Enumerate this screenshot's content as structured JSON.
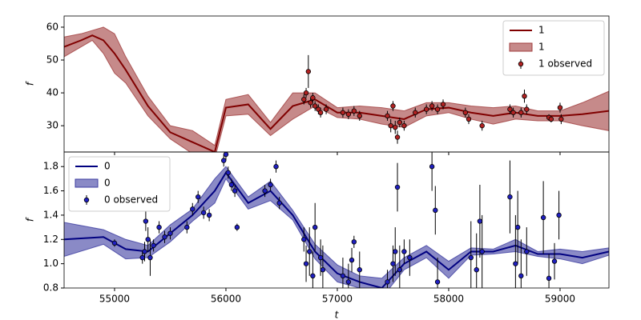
{
  "chart_data": [
    {
      "type": "line",
      "y_label": "f",
      "legend": "upper right",
      "ylim": [
        22,
        63.4
      ],
      "yticks": [
        30,
        40,
        50,
        60
      ],
      "x": [
        54547,
        54700,
        54800,
        54900,
        55000,
        55100,
        55300,
        55500,
        55700,
        55900,
        56000,
        56200,
        56400,
        56600,
        56800,
        57000,
        57200,
        57400,
        57600,
        57800,
        58000,
        58200,
        58400,
        58600,
        58800,
        59000,
        59200,
        59439
      ],
      "series": [
        {
          "name": "1",
          "type": "line",
          "color": "#800000",
          "values": [
            54,
            56,
            57.5,
            56,
            52,
            47,
            36,
            28,
            25,
            22,
            35.5,
            36.5,
            29,
            36,
            38,
            34,
            34,
            33,
            32,
            35,
            35.5,
            34,
            33,
            34,
            33,
            33,
            33.5,
            34.5
          ]
        },
        {
          "name": "1",
          "type": "band",
          "color": "#a03c3c",
          "lower": [
            51,
            54,
            56,
            52,
            46,
            43,
            33,
            26,
            21.5,
            20,
            33,
            33.5,
            27,
            32,
            36,
            32.5,
            32,
            30.5,
            29.5,
            33,
            34,
            32,
            30.5,
            32,
            31.5,
            31.5,
            30,
            28.5
          ],
          "upper": [
            57,
            58,
            59,
            60,
            58,
            51,
            39,
            30,
            28.5,
            24,
            38,
            39.5,
            31,
            40,
            40,
            35.5,
            36,
            35.5,
            34.5,
            37,
            37,
            36,
            35.5,
            36,
            34.5,
            34.5,
            37,
            40.5
          ]
        },
        {
          "name": "1 observed",
          "type": "errorbar",
          "color": "#b22222",
          "x": [
            56700,
            56720,
            56740,
            56760,
            56780,
            56800,
            56830,
            56850,
            56900,
            57050,
            57100,
            57150,
            57200,
            57450,
            57480,
            57500,
            57520,
            57540,
            57560,
            57600,
            57700,
            57800,
            57850,
            57900,
            57950,
            58150,
            58180,
            58300,
            58550,
            58580,
            58650,
            58680,
            58700,
            58900,
            58920,
            59000,
            59010
          ],
          "values": [
            38,
            40,
            46.5,
            37,
            38.5,
            36,
            35,
            34,
            35,
            34,
            33.5,
            34.5,
            33,
            33,
            30,
            36,
            29.5,
            26.5,
            31,
            30,
            34,
            35,
            36,
            35,
            36.5,
            34,
            32,
            30,
            35,
            34,
            34,
            39,
            35,
            32.5,
            32,
            35.5,
            32
          ],
          "errors": [
            1.5,
            1.5,
            5,
            1.5,
            1.5,
            1.5,
            1.5,
            1.5,
            1.5,
            1.5,
            1.5,
            1.5,
            1.5,
            1.5,
            2,
            1.5,
            2,
            2,
            1.5,
            1.5,
            1.5,
            1.5,
            1.5,
            1.5,
            1.5,
            1.5,
            1.5,
            1.5,
            1.5,
            1.5,
            1.5,
            2,
            1.5,
            1,
            1,
            1.5,
            1.5
          ]
        }
      ]
    },
    {
      "type": "line",
      "y_label": "f",
      "x_label": "t",
      "legend": "upper left",
      "xlim": [
        54547,
        59439
      ],
      "xticks": [
        55000,
        56000,
        57000,
        58000,
        59000
      ],
      "ylim": [
        0.8,
        1.92
      ],
      "yticks": [
        0.8,
        {
          "value": 1,
          "label": "1.0"
        },
        1.2,
        1.4,
        1.6,
        1.8
      ],
      "x": [
        54547,
        54900,
        55100,
        55300,
        55500,
        55700,
        55900,
        56000,
        56200,
        56400,
        56600,
        56800,
        57000,
        57200,
        57400,
        57600,
        57800,
        58000,
        58200,
        58400,
        58600,
        58800,
        59000,
        59200,
        59439
      ],
      "series": [
        {
          "name": "0",
          "type": "line",
          "color": "#000080",
          "values": [
            1.2,
            1.22,
            1.12,
            1.1,
            1.25,
            1.4,
            1.6,
            1.75,
            1.5,
            1.6,
            1.4,
            1.1,
            0.92,
            0.85,
            0.8,
            1.0,
            1.1,
            0.95,
            1.1,
            1.1,
            1.15,
            1.08,
            1.08,
            1.05,
            1.1
          ]
        },
        {
          "name": "0",
          "type": "band",
          "color": "#3c3ca0",
          "lower": [
            1.06,
            1.16,
            1.04,
            1.05,
            1.18,
            1.35,
            1.5,
            1.7,
            1.45,
            1.52,
            1.36,
            1.04,
            0.85,
            0.8,
            0.72,
            0.95,
            1.05,
            0.88,
            1.07,
            1.08,
            1.1,
            1.06,
            1.04,
            1.0,
            1.07
          ],
          "upper": [
            1.34,
            1.28,
            1.2,
            1.15,
            1.32,
            1.45,
            1.7,
            1.8,
            1.55,
            1.68,
            1.44,
            1.16,
            0.99,
            0.9,
            0.88,
            1.05,
            1.15,
            1.02,
            1.13,
            1.12,
            1.2,
            1.1,
            1.12,
            1.1,
            1.13
          ]
        },
        {
          "name": "0 observed",
          "type": "errorbar",
          "color": "#1f1fbf",
          "x": [
            55000,
            55250,
            55270,
            55280,
            55300,
            55320,
            55350,
            55400,
            55450,
            55500,
            55650,
            55700,
            55750,
            55800,
            55850,
            55980,
            56000,
            56020,
            56050,
            56080,
            56100,
            56350,
            56400,
            56450,
            56480,
            56700,
            56720,
            56750,
            56780,
            56800,
            56850,
            56870,
            57050,
            57100,
            57130,
            57150,
            57200,
            57450,
            57500,
            57520,
            57540,
            57560,
            57600,
            57650,
            57850,
            57880,
            57900,
            58200,
            58250,
            58280,
            58300,
            58550,
            58600,
            58620,
            58650,
            58700,
            58850,
            58900,
            58950,
            58990
          ],
          "values": [
            1.17,
            1.05,
            1.1,
            1.35,
            1.2,
            1.05,
            1.15,
            1.3,
            1.22,
            1.25,
            1.3,
            1.45,
            1.55,
            1.42,
            1.4,
            1.85,
            1.9,
            1.75,
            1.65,
            1.6,
            1.3,
            1.6,
            1.65,
            1.8,
            1.5,
            1.2,
            1.0,
            1.1,
            0.9,
            1.3,
            1.05,
            0.95,
            0.9,
            0.85,
            1.03,
            1.18,
            0.95,
            0.85,
            1.0,
            1.1,
            1.63,
            0.95,
            1.1,
            1.05,
            1.8,
            1.44,
            0.85,
            1.05,
            0.95,
            1.35,
            1.1,
            1.55,
            1.0,
            1.3,
            0.9,
            1.1,
            1.38,
            0.88,
            1.02,
            1.4
          ],
          "errors": [
            0.03,
            0.05,
            0.08,
            0.08,
            0.1,
            0.15,
            0.05,
            0.05,
            0.05,
            0.05,
            0.05,
            0.05,
            0.05,
            0.05,
            0.05,
            0.05,
            0.05,
            0.05,
            0.05,
            0.05,
            0.03,
            0.05,
            0.05,
            0.05,
            0.05,
            0.1,
            0.15,
            0.2,
            0.2,
            0.2,
            0.15,
            0.2,
            0.15,
            0.15,
            0.1,
            0.05,
            0.15,
            0.1,
            0.15,
            0.2,
            0.2,
            0.2,
            0.1,
            0.15,
            0.2,
            0.2,
            0.2,
            0.3,
            0.3,
            0.3,
            0.3,
            0.3,
            0.4,
            0.3,
            0.3,
            0.2,
            0.3,
            0.2,
            0.15,
            0.2
          ]
        }
      ]
    }
  ]
}
